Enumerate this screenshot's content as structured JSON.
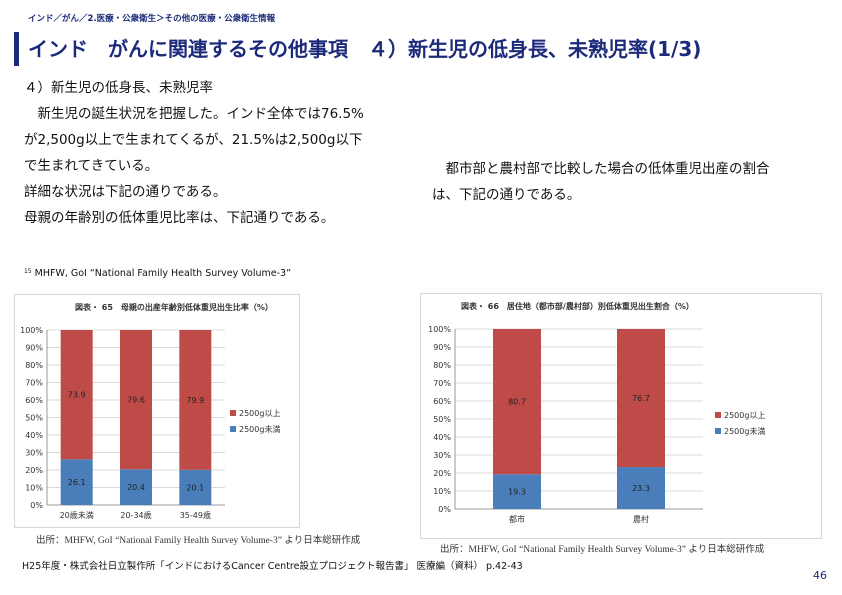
{
  "breadcrumb": "インド／がん／2.医療・公衆衛生＞その他の医療・公衆衛生情報",
  "title": "インド　がんに関連するその他事項　４）新生児の低身長、未熟児率(1/3)",
  "left_text": {
    "heading": "４）新生児の低身長、未熟児率",
    "line1": "　新生児の誕生状況を把握した。インド全体では76.5%",
    "line2": "が2,500g以上で生まれてくるが、21.5%は2,500g以下",
    "line3": "で生まれてきている。",
    "line4": "詳細な状況は下記の通りである。",
    "line5": "母親の年齢別の低体重児比率は、下記通りである。"
  },
  "right_text": {
    "line1": "　都市部と農村部で比較した場合の低体重児出産の割合",
    "line2": "は、下記の通りである。"
  },
  "footnote": {
    "marker": "15",
    "text": "MHFW, GoI “National Family Health Survey Volume-3”"
  },
  "chart_data": [
    {
      "type": "bar",
      "stacked": true,
      "percent": true,
      "title": "図表・ 65　母親の出産年齢別低体重児出生比率（%）",
      "categories": [
        "20歳未満",
        "20-34歳",
        "35-49歳"
      ],
      "series": [
        {
          "name": "2500g未満",
          "values": [
            26.1,
            20.4,
            20.1
          ],
          "color": "#4a7ebb"
        },
        {
          "name": "2500g以上",
          "values": [
            73.9,
            79.6,
            79.9
          ],
          "color": "#be4b48"
        }
      ],
      "ylim": [
        0,
        100
      ],
      "yticks": [
        "0%",
        "10%",
        "20%",
        "30%",
        "40%",
        "50%",
        "60%",
        "70%",
        "80%",
        "90%",
        "100%"
      ],
      "legend": [
        "2500g以上",
        "2500g未満"
      ],
      "legend_position": "right",
      "grid": true
    },
    {
      "type": "bar",
      "stacked": true,
      "percent": true,
      "title": "図表・ 66　居住地（都市部/農村部）別低体重児出生割合（%）",
      "categories": [
        "都市",
        "農村"
      ],
      "series": [
        {
          "name": "2500g未満",
          "values": [
            19.3,
            23.3
          ],
          "color": "#4a7ebb"
        },
        {
          "name": "2500g以上",
          "values": [
            80.7,
            76.7
          ],
          "color": "#be4b48"
        }
      ],
      "ylim": [
        0,
        100
      ],
      "yticks": [
        "0%",
        "10%",
        "20%",
        "30%",
        "40%",
        "50%",
        "60%",
        "70%",
        "80%",
        "90%",
        "100%"
      ],
      "legend": [
        "2500g以上",
        "2500g未満"
      ],
      "legend_position": "right",
      "grid": true
    }
  ],
  "source_left": "出所：MHFW, GoI “National Family Health Survey Volume-3” より日本総研作成",
  "source_right": "出所：MHFW, GoI “National Family Health Survey Volume-3” より日本総研作成",
  "footer": "H25年度・株式会社日立製作所「インドにおけるCancer Centre設立プロジェクト報告書」 医療編（資料） p.42-43",
  "page_number": "46"
}
